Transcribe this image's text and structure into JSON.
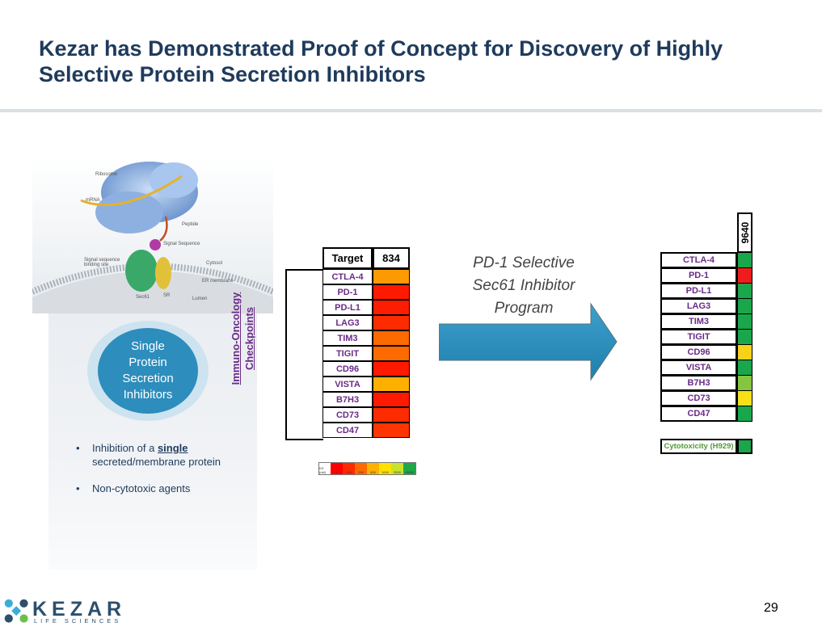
{
  "title": "Kezar has Demonstrated Proof of Concept for Discovery of Highly Selective Protein Secretion Inhibitors",
  "illustration": {
    "labels": [
      "Ribosome",
      "mRNA",
      "Peptide",
      "Signal Sequence",
      "Signal sequence binding site",
      "Cytosol",
      "ER membrane",
      "Sec61",
      "SR",
      "Lumen"
    ]
  },
  "circle_text": "Single Protein Secretion Inhibitors",
  "bullets": {
    "b1_pre": "Inhibition of a ",
    "b1_bold": "single",
    "b1_post": " secreted/membrane protein",
    "b2": "Non-cytotoxic agents"
  },
  "table1": {
    "header_target": "Target",
    "header_compound": "834",
    "side_label_line1": "Immuno-Oncology",
    "side_label_line2": "Checkpoints",
    "rows": [
      {
        "name": "CTLA-4",
        "color": "#fd9a03"
      },
      {
        "name": "PD-1",
        "color": "#fd1a00"
      },
      {
        "name": "PD-L1",
        "color": "#fd1d00"
      },
      {
        "name": "LAG3",
        "color": "#fd2b00"
      },
      {
        "name": "TIM3",
        "color": "#fd6a00"
      },
      {
        "name": "TIGIT",
        "color": "#fd6a00"
      },
      {
        "name": "CD96",
        "color": "#fd1a00"
      },
      {
        "name": "VISTA",
        "color": "#fdb000"
      },
      {
        "name": "B7H3",
        "color": "#fd1a00"
      },
      {
        "name": "CD73",
        "color": "#fd2b00"
      },
      {
        "name": "CD47",
        "color": "#fd3500"
      }
    ]
  },
  "legend": {
    "key_label": "KD (nM)",
    "items": [
      {
        "label": "1",
        "color": "#ff0000"
      },
      {
        "label": "100",
        "color": "#ff2a00"
      },
      {
        "label": "250",
        "color": "#ff6a00"
      },
      {
        "label": "500",
        "color": "#ffb000"
      },
      {
        "label": "1000",
        "color": "#ffe100"
      },
      {
        "label": "2500",
        "color": "#c9e22a"
      },
      {
        "label": ">5000",
        "color": "#1ea84a"
      }
    ]
  },
  "program_text": {
    "line1": "PD-1 Selective",
    "line2": "Sec61 Inhibitor",
    "line3": "Program"
  },
  "table2": {
    "header_compound": "9640",
    "rows": [
      {
        "name": "CTLA-4",
        "color": "#1aa64b"
      },
      {
        "name": "PD-1",
        "color": "#ee1c1c"
      },
      {
        "name": "PD-L1",
        "color": "#1aa64b"
      },
      {
        "name": "LAG3",
        "color": "#1aa64b"
      },
      {
        "name": "TIM3",
        "color": "#1aa64b"
      },
      {
        "name": "TIGIT",
        "color": "#1aa64b"
      },
      {
        "name": "CD96",
        "color": "#f7d21a"
      },
      {
        "name": "VISTA",
        "color": "#1aa64b"
      },
      {
        "name": "B7H3",
        "color": "#86c540"
      },
      {
        "name": "CD73",
        "color": "#f7e01a"
      },
      {
        "name": "CD47",
        "color": "#1aa64b"
      }
    ],
    "cytotoxicity_label": "Cytotoxicity (H929)",
    "cytotoxicity_color": "#1aa64b"
  },
  "footer": {
    "logo_name": "KEZAR",
    "logo_sub": "LIFE SCIENCES",
    "page_number": "29"
  }
}
